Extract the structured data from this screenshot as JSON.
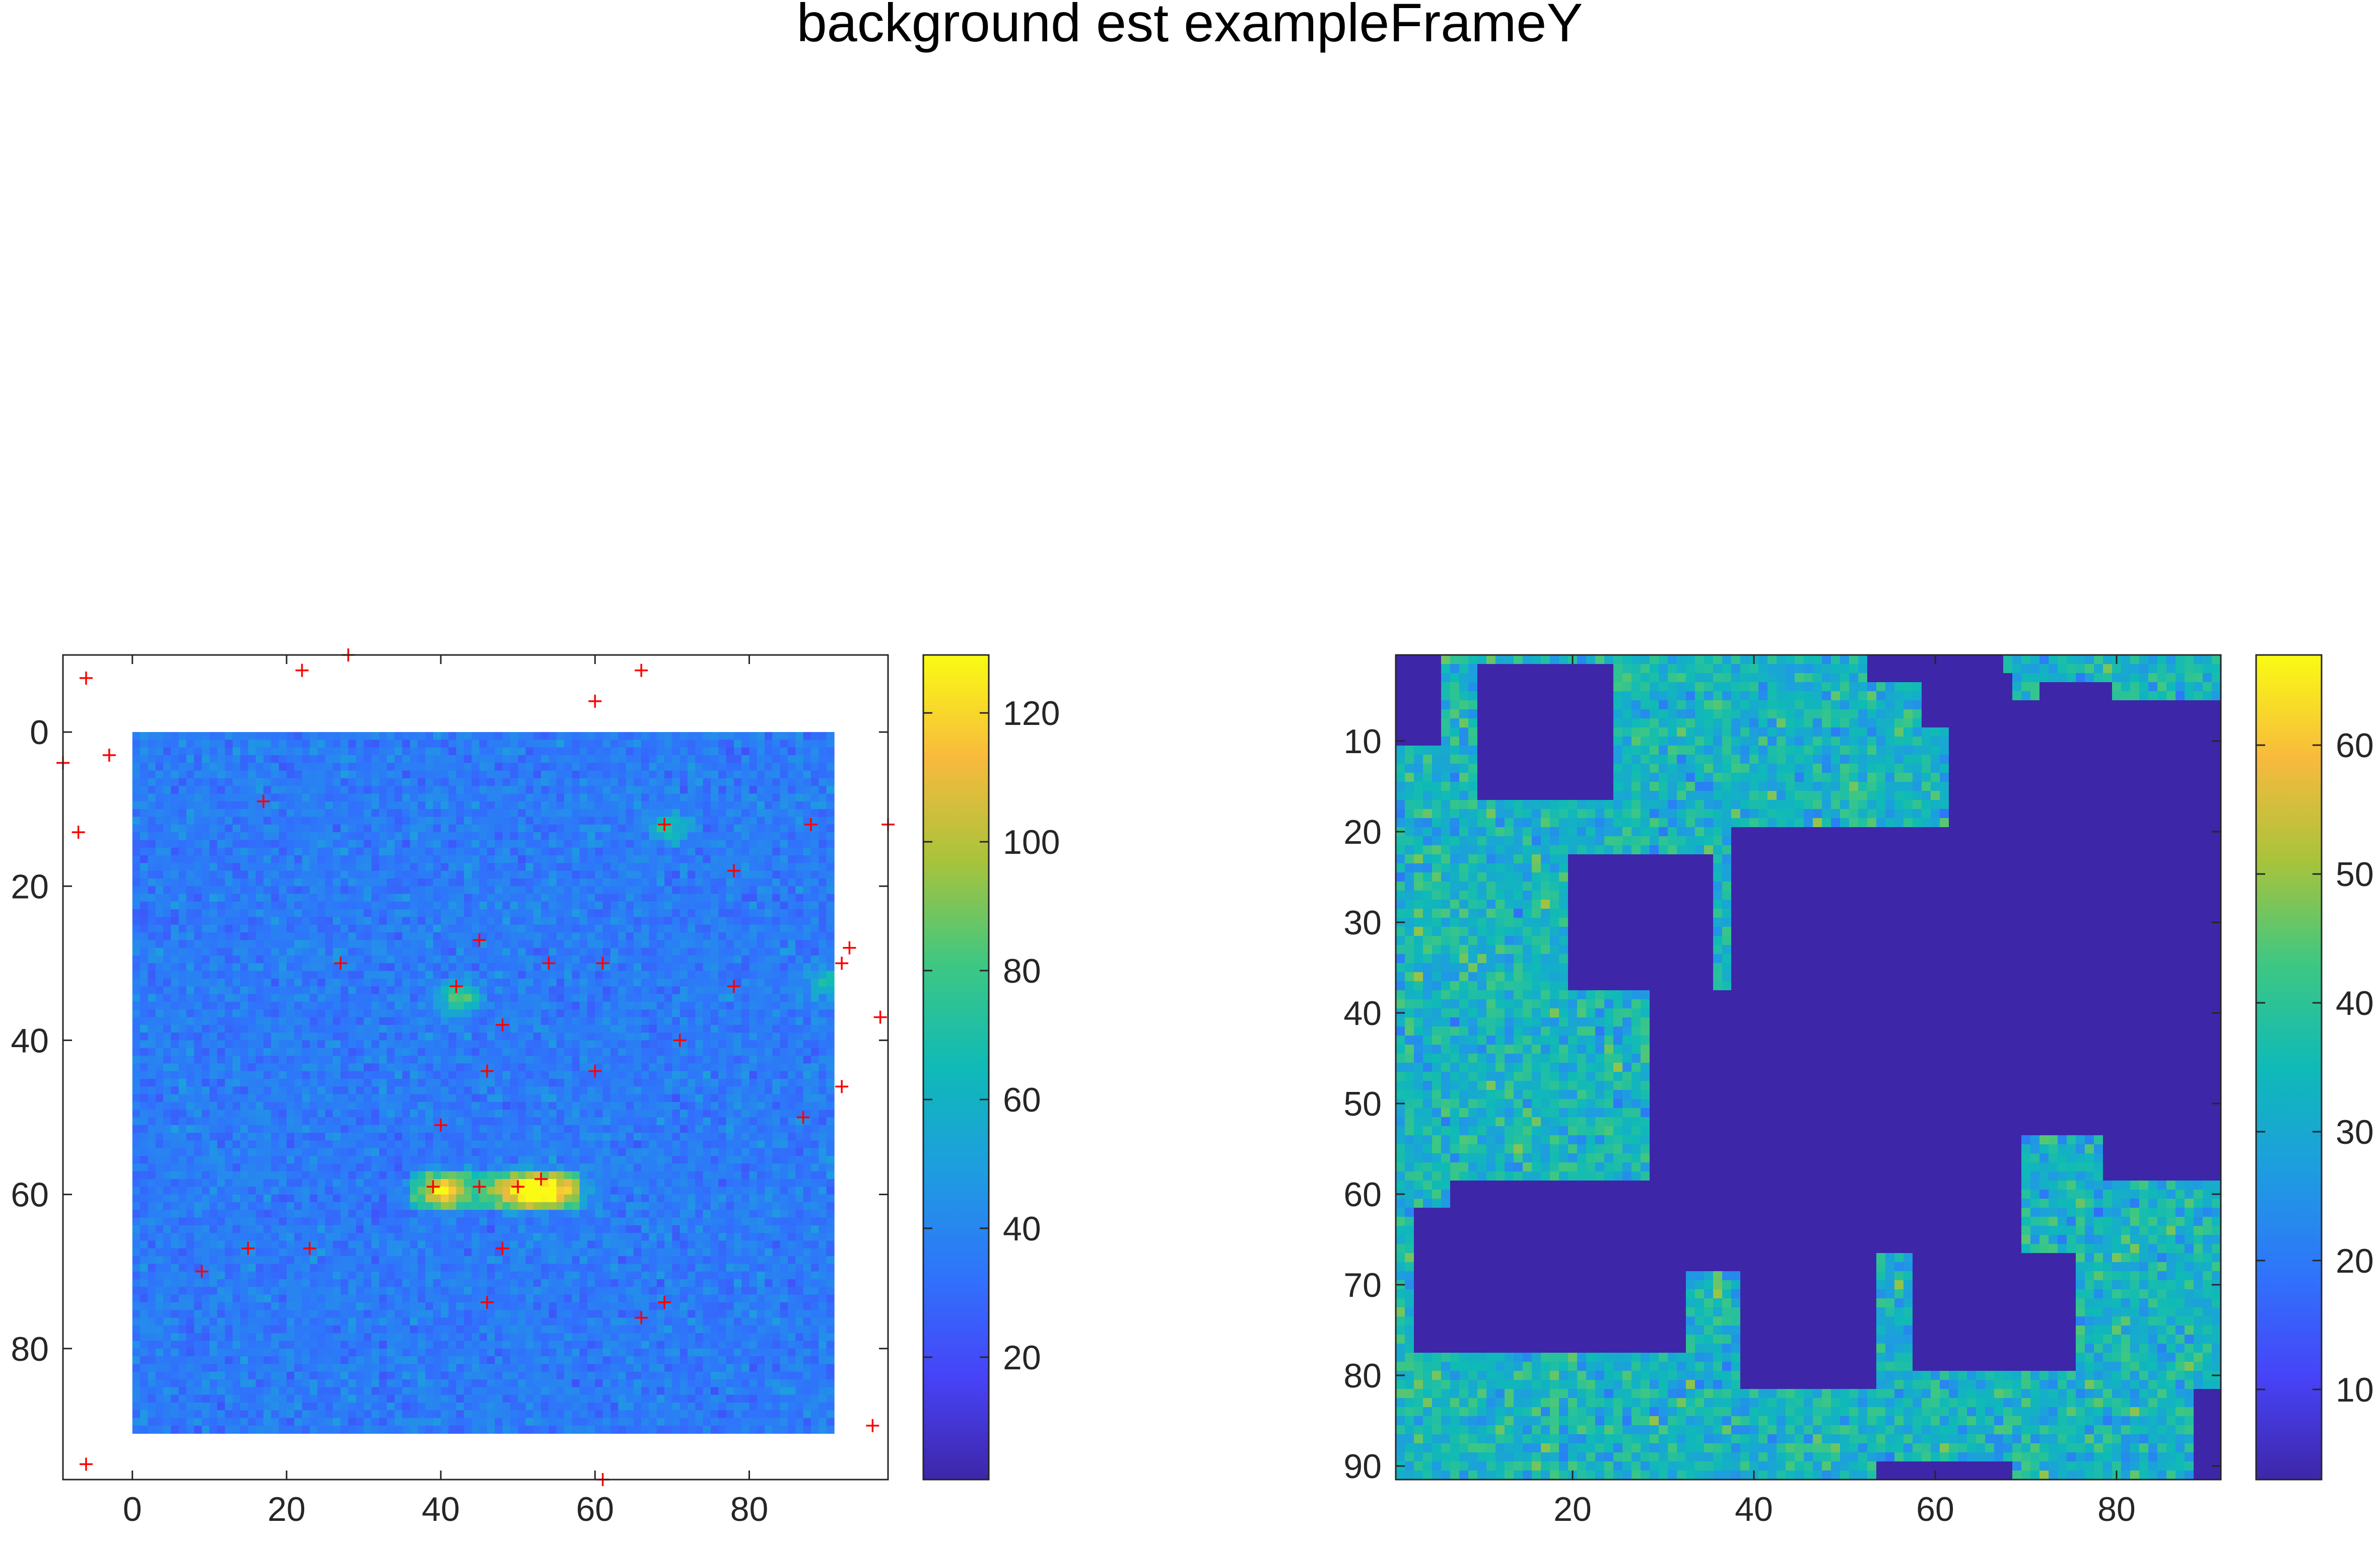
{
  "figure": {
    "title": "background est exampleFrameY"
  },
  "colors": {
    "marker": "#ff0000",
    "axis": "#262626",
    "colormap": [
      "#3e26a8",
      "#4743f8",
      "#2f74fb",
      "#1e9de0",
      "#0fbab7",
      "#3ec783",
      "#a8c33b",
      "#f8ba3d",
      "#f9fb14"
    ]
  },
  "chart_data": [
    {
      "type": "heatmap",
      "title": "",
      "xlabel": "",
      "ylabel": "",
      "x_range": [
        -9,
        98
      ],
      "y_range": [
        -10,
        97
      ],
      "y_reversed": true,
      "image_extent": {
        "cols": [
          0,
          91
        ],
        "rows": [
          0,
          91
        ]
      },
      "x_ticks": [
        0,
        20,
        40,
        60,
        80
      ],
      "y_ticks": [
        0,
        20,
        40,
        60,
        80
      ],
      "colorbar": {
        "range": [
          1,
          129
        ],
        "ticks": [
          20,
          40,
          60,
          80,
          100,
          120
        ]
      },
      "bright_spots": [
        {
          "x": 42,
          "y": 34,
          "value": 85
        },
        {
          "x": 52,
          "y": 59,
          "value": 125
        },
        {
          "x": 40,
          "y": 59,
          "value": 100
        },
        {
          "x": 69,
          "y": 12,
          "value": 70
        },
        {
          "x": 90,
          "y": 32,
          "value": 70
        }
      ],
      "markers": [
        [
          -6,
          -7
        ],
        [
          22,
          -8
        ],
        [
          28,
          -10
        ],
        [
          66,
          -8
        ],
        [
          60,
          -4
        ],
        [
          -9,
          4
        ],
        [
          -3,
          3
        ],
        [
          -7,
          13
        ],
        [
          17,
          9
        ],
        [
          69,
          12
        ],
        [
          88,
          12
        ],
        [
          98,
          12
        ],
        [
          78,
          18
        ],
        [
          45,
          27
        ],
        [
          93,
          28
        ],
        [
          27,
          30
        ],
        [
          54,
          30
        ],
        [
          61,
          30
        ],
        [
          92,
          30
        ],
        [
          42,
          33
        ],
        [
          78,
          33
        ],
        [
          97,
          37
        ],
        [
          48,
          38
        ],
        [
          71,
          40
        ],
        [
          60,
          44
        ],
        [
          46,
          44
        ],
        [
          92,
          46
        ],
        [
          40,
          51
        ],
        [
          87,
          50
        ],
        [
          39,
          59
        ],
        [
          45,
          59
        ],
        [
          50,
          59
        ],
        [
          53,
          58
        ],
        [
          15,
          67
        ],
        [
          23,
          67
        ],
        [
          48,
          67
        ],
        [
          9,
          70
        ],
        [
          69,
          74
        ],
        [
          46,
          74
        ],
        [
          66,
          76
        ],
        [
          96,
          90
        ],
        [
          -6,
          95
        ],
        [
          61,
          97
        ]
      ]
    },
    {
      "type": "heatmap",
      "title": "",
      "xlabel": "",
      "ylabel": "",
      "x_range": [
        0.5,
        91.5
      ],
      "y_range": [
        0.5,
        91.5
      ],
      "y_reversed": true,
      "x_ticks": [
        20,
        40,
        60,
        80
      ],
      "y_ticks": [
        10,
        20,
        30,
        40,
        50,
        60,
        70,
        80,
        90
      ],
      "colorbar": {
        "range": [
          3,
          67
        ],
        "ticks": [
          10,
          20,
          30,
          40,
          50,
          60
        ]
      },
      "masked_regions": [
        {
          "cols": [
            1,
            5
          ],
          "rows": [
            1,
            10
          ]
        },
        {
          "cols": [
            10,
            24
          ],
          "rows": [
            2,
            16
          ]
        },
        {
          "cols": [
            53,
            67
          ],
          "rows": [
            1,
            3
          ]
        },
        {
          "cols": [
            62,
            91
          ],
          "rows": [
            6,
            19
          ]
        },
        {
          "cols": [
            59,
            68
          ],
          "rows": [
            3,
            8
          ]
        },
        {
          "cols": [
            72,
            79
          ],
          "rows": [
            4,
            11
          ]
        },
        {
          "cols": [
            20,
            35
          ],
          "rows": [
            23,
            37
          ]
        },
        {
          "cols": [
            38,
            69
          ],
          "rows": [
            20,
            66
          ]
        },
        {
          "cols": [
            70,
            91
          ],
          "rows": [
            14,
            43
          ]
        },
        {
          "cols": [
            79,
            91
          ],
          "rows": [
            42,
            58
          ]
        },
        {
          "cols": [
            33,
            40
          ],
          "rows": [
            38,
            62
          ]
        },
        {
          "cols": [
            29,
            35
          ],
          "rows": [
            38,
            58
          ]
        },
        {
          "cols": [
            66,
            79
          ],
          "rows": [
            44,
            53
          ]
        },
        {
          "cols": [
            3,
            32
          ],
          "rows": [
            62,
            77
          ]
        },
        {
          "cols": [
            7,
            39
          ],
          "rows": [
            59,
            68
          ]
        },
        {
          "cols": [
            39,
            53
          ],
          "rows": [
            60,
            81
          ]
        },
        {
          "cols": [
            58,
            75
          ],
          "rows": [
            67,
            79
          ]
        },
        {
          "cols": [
            54,
            68
          ],
          "rows": [
            90,
            91
          ]
        },
        {
          "cols": [
            89,
            91
          ],
          "rows": [
            82,
            91
          ]
        }
      ]
    }
  ]
}
